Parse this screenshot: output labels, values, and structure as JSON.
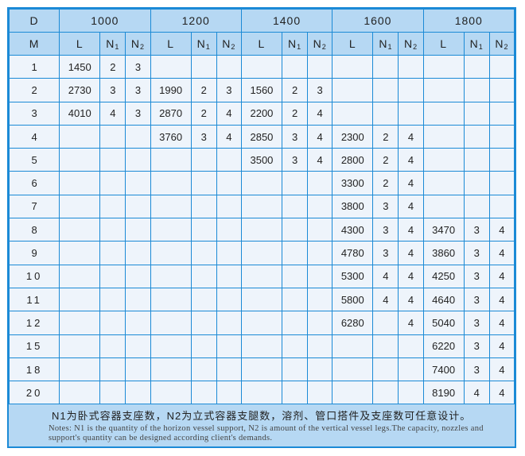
{
  "header": {
    "d_label": "D",
    "m_label": "M",
    "diameters": [
      "1000",
      "1200",
      "1400",
      "1600",
      "1800"
    ],
    "sub_columns": [
      {
        "label": "L",
        "sub": ""
      },
      {
        "label": "N",
        "sub": "1"
      },
      {
        "label": "N",
        "sub": "2"
      }
    ]
  },
  "rows": [
    {
      "m": "1",
      "cells": [
        [
          "1450",
          "2",
          "3"
        ],
        [
          "",
          "",
          ""
        ],
        [
          "",
          "",
          ""
        ],
        [
          "",
          "",
          ""
        ],
        [
          "",
          "",
          ""
        ]
      ]
    },
    {
      "m": "2",
      "cells": [
        [
          "2730",
          "3",
          "3"
        ],
        [
          "1990",
          "2",
          "3"
        ],
        [
          "1560",
          "2",
          "3"
        ],
        [
          "",
          "",
          ""
        ],
        [
          "",
          "",
          ""
        ]
      ]
    },
    {
      "m": "3",
      "cells": [
        [
          "4010",
          "4",
          "3"
        ],
        [
          "2870",
          "2",
          "4"
        ],
        [
          "2200",
          "2",
          "4"
        ],
        [
          "",
          "",
          ""
        ],
        [
          "",
          "",
          ""
        ]
      ]
    },
    {
      "m": "4",
      "cells": [
        [
          "",
          "",
          ""
        ],
        [
          "3760",
          "3",
          "4"
        ],
        [
          "2850",
          "3",
          "4"
        ],
        [
          "2300",
          "2",
          "4"
        ],
        [
          "",
          "",
          ""
        ]
      ]
    },
    {
      "m": "5",
      "cells": [
        [
          "",
          "",
          ""
        ],
        [
          "",
          "",
          ""
        ],
        [
          "3500",
          "3",
          "4"
        ],
        [
          "2800",
          "2",
          "4"
        ],
        [
          "",
          "",
          ""
        ]
      ]
    },
    {
      "m": "6",
      "cells": [
        [
          "",
          "",
          ""
        ],
        [
          "",
          "",
          ""
        ],
        [
          "",
          "",
          ""
        ],
        [
          "3300",
          "2",
          "4"
        ],
        [
          "",
          "",
          ""
        ]
      ]
    },
    {
      "m": "7",
      "cells": [
        [
          "",
          "",
          ""
        ],
        [
          "",
          "",
          ""
        ],
        [
          "",
          "",
          ""
        ],
        [
          "3800",
          "3",
          "4"
        ],
        [
          "",
          "",
          ""
        ]
      ]
    },
    {
      "m": "8",
      "cells": [
        [
          "",
          "",
          ""
        ],
        [
          "",
          "",
          ""
        ],
        [
          "",
          "",
          ""
        ],
        [
          "4300",
          "3",
          "4"
        ],
        [
          "3470",
          "3",
          "4"
        ]
      ]
    },
    {
      "m": "9",
      "cells": [
        [
          "",
          "",
          ""
        ],
        [
          "",
          "",
          ""
        ],
        [
          "",
          "",
          ""
        ],
        [
          "4780",
          "3",
          "4"
        ],
        [
          "3860",
          "3",
          "4"
        ]
      ]
    },
    {
      "m": "10",
      "cells": [
        [
          "",
          "",
          ""
        ],
        [
          "",
          "",
          ""
        ],
        [
          "",
          "",
          ""
        ],
        [
          "5300",
          "4",
          "4"
        ],
        [
          "4250",
          "3",
          "4"
        ]
      ]
    },
    {
      "m": "11",
      "cells": [
        [
          "",
          "",
          ""
        ],
        [
          "",
          "",
          ""
        ],
        [
          "",
          "",
          ""
        ],
        [
          "5800",
          "4",
          "4"
        ],
        [
          "4640",
          "3",
          "4"
        ]
      ]
    },
    {
      "m": "12",
      "cells": [
        [
          "",
          "",
          ""
        ],
        [
          "",
          "",
          ""
        ],
        [
          "",
          "",
          ""
        ],
        [
          "6280",
          "",
          "4"
        ],
        [
          "5040",
          "3",
          "4"
        ]
      ]
    },
    {
      "m": "15",
      "cells": [
        [
          "",
          "",
          ""
        ],
        [
          "",
          "",
          ""
        ],
        [
          "",
          "",
          ""
        ],
        [
          "",
          "",
          ""
        ],
        [
          "6220",
          "3",
          "4"
        ]
      ]
    },
    {
      "m": "18",
      "cells": [
        [
          "",
          "",
          ""
        ],
        [
          "",
          "",
          ""
        ],
        [
          "",
          "",
          ""
        ],
        [
          "",
          "",
          ""
        ],
        [
          "7400",
          "3",
          "4"
        ]
      ]
    },
    {
      "m": "20",
      "cells": [
        [
          "",
          "",
          ""
        ],
        [
          "",
          "",
          ""
        ],
        [
          "",
          "",
          ""
        ],
        [
          "",
          "",
          ""
        ],
        [
          "8190",
          "4",
          "4"
        ]
      ]
    }
  ],
  "notes": {
    "chinese": "N1为卧式容器支座数，N2为立式容器支腿数，溶剂、管口搭件及支座数可任意设计。",
    "english": "Notes: N1 is the quantity of the horizon vessel support, N2 is amount of the vertical vessel legs.The capacity, nozzles and support's quantity can be designed according client's demands."
  },
  "colors": {
    "border": "#1b8ad6",
    "header_bg": "#b6d8f3",
    "cell_bg": "#eef4fb"
  }
}
